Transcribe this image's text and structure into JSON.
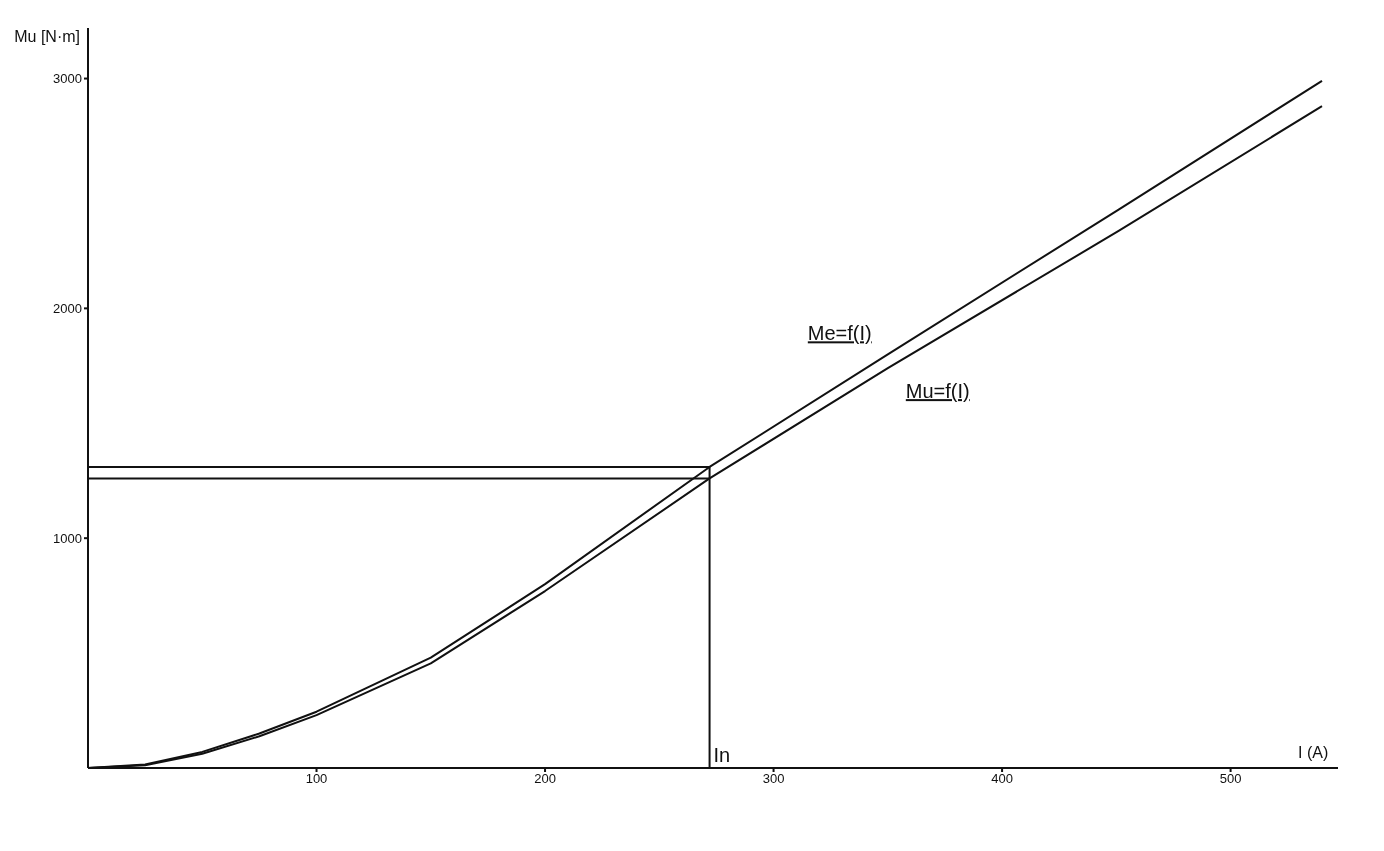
{
  "chart_data": {
    "type": "line",
    "xlabel": "I (A)",
    "ylabel": "Mu [N·m]",
    "series": [
      {
        "name": "Me=f(I)",
        "color": "#111111",
        "x": [
          0,
          25,
          50,
          75,
          100,
          150,
          200,
          272,
          350,
          451,
          540
        ],
        "values": [
          0,
          15,
          70,
          150,
          245,
          480,
          800,
          1310,
          1800,
          2430,
          2990
        ]
      },
      {
        "name": "Mu=f(I)",
        "color": "#111111",
        "x": [
          0,
          25,
          50,
          75,
          100,
          150,
          200,
          272,
          350,
          451,
          540
        ],
        "values": [
          0,
          12,
          62,
          138,
          230,
          455,
          770,
          1260,
          1740,
          2337,
          2880
        ]
      },
      {
        "color": "#111111",
        "x": [
          0,
          272
        ],
        "values": [
          1310,
          1310
        ]
      },
      {
        "color": "#111111",
        "x": [
          0,
          272
        ],
        "values": [
          1260,
          1260
        ]
      },
      {
        "color": "#111111",
        "x": [
          272,
          272
        ],
        "values": [
          0,
          1310
        ]
      }
    ],
    "annotations": [
      {
        "text": "In",
        "x": 272,
        "y": 0
      }
    ],
    "xlim": [
      0,
      547
    ],
    "xticks": [
      100,
      200,
      300,
      400,
      500
    ],
    "ylim": [
      0,
      3220
    ],
    "yticks": [
      1000,
      2000,
      3000
    ],
    "grid": false,
    "legend": false,
    "marker": "none",
    "line_style": "solid"
  }
}
